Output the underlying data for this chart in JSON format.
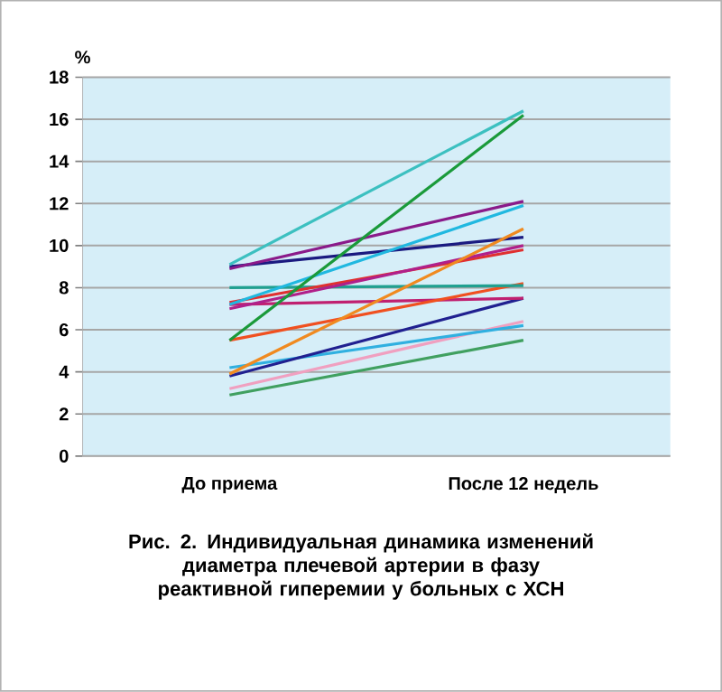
{
  "chart_data": {
    "type": "line",
    "title": "Рис. 2. Индивидуальная динамика изменений диаметра плечевой артерии в фазу реактивной гиперемии у больных с ХСН",
    "ylabel": "%",
    "categories": [
      "До приема",
      "После 12 недель"
    ],
    "ylim": [
      0,
      18
    ],
    "yticks": [
      0,
      2,
      4,
      6,
      8,
      10,
      12,
      14,
      16,
      18
    ],
    "grid": "y",
    "marker": "none",
    "series": [
      {
        "color": "#3cc0c0",
        "values": [
          9.1,
          16.4
        ]
      },
      {
        "color": "#1a9a3a",
        "values": [
          5.5,
          16.2
        ]
      },
      {
        "color": "#8a1a8a",
        "values": [
          8.9,
          12.1
        ]
      },
      {
        "color": "#20b8e0",
        "values": [
          7.2,
          11.9
        ]
      },
      {
        "color": "#f08a20",
        "values": [
          3.9,
          10.8
        ]
      },
      {
        "color": "#1a1a80",
        "values": [
          9.0,
          10.4
        ]
      },
      {
        "color": "#b0208a",
        "values": [
          7.0,
          10.0
        ]
      },
      {
        "color": "#e03030",
        "values": [
          7.3,
          9.8
        ]
      },
      {
        "color": "#20a090",
        "values": [
          8.0,
          8.1
        ]
      },
      {
        "color": "#f05020",
        "values": [
          5.5,
          8.2
        ]
      },
      {
        "color": "#c02070",
        "values": [
          7.2,
          7.5
        ]
      },
      {
        "color": "#202090",
        "values": [
          3.8,
          7.5
        ]
      },
      {
        "color": "#30b0e0",
        "values": [
          4.2,
          6.2
        ]
      },
      {
        "color": "#f0a0c0",
        "values": [
          3.2,
          6.4
        ]
      },
      {
        "color": "#40a060",
        "values": [
          2.9,
          5.5
        ]
      }
    ]
  }
}
